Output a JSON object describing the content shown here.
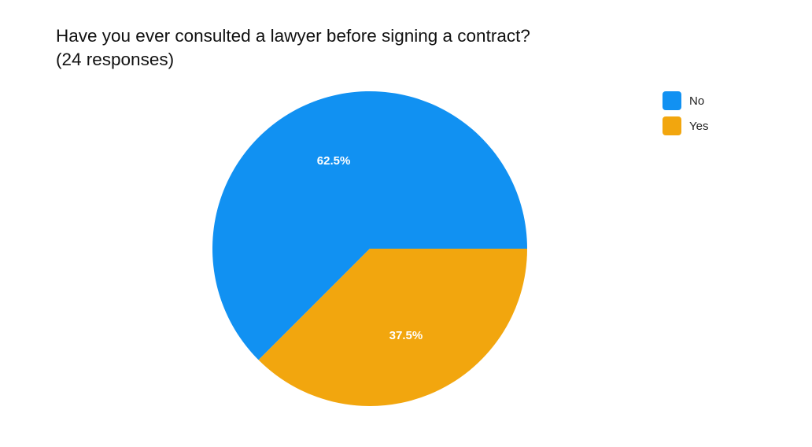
{
  "chart_data": {
    "type": "pie",
    "title_line1": "Have you ever consulted a lawyer before signing a contract?",
    "title_line2": "(24 responses)",
    "categories": [
      "No",
      "Yes"
    ],
    "values": [
      62.5,
      37.5
    ],
    "value_labels": [
      "62.5%",
      "37.5%"
    ],
    "colors": [
      "#1191F2",
      "#F2A60E"
    ],
    "legend_position": "top-right"
  }
}
